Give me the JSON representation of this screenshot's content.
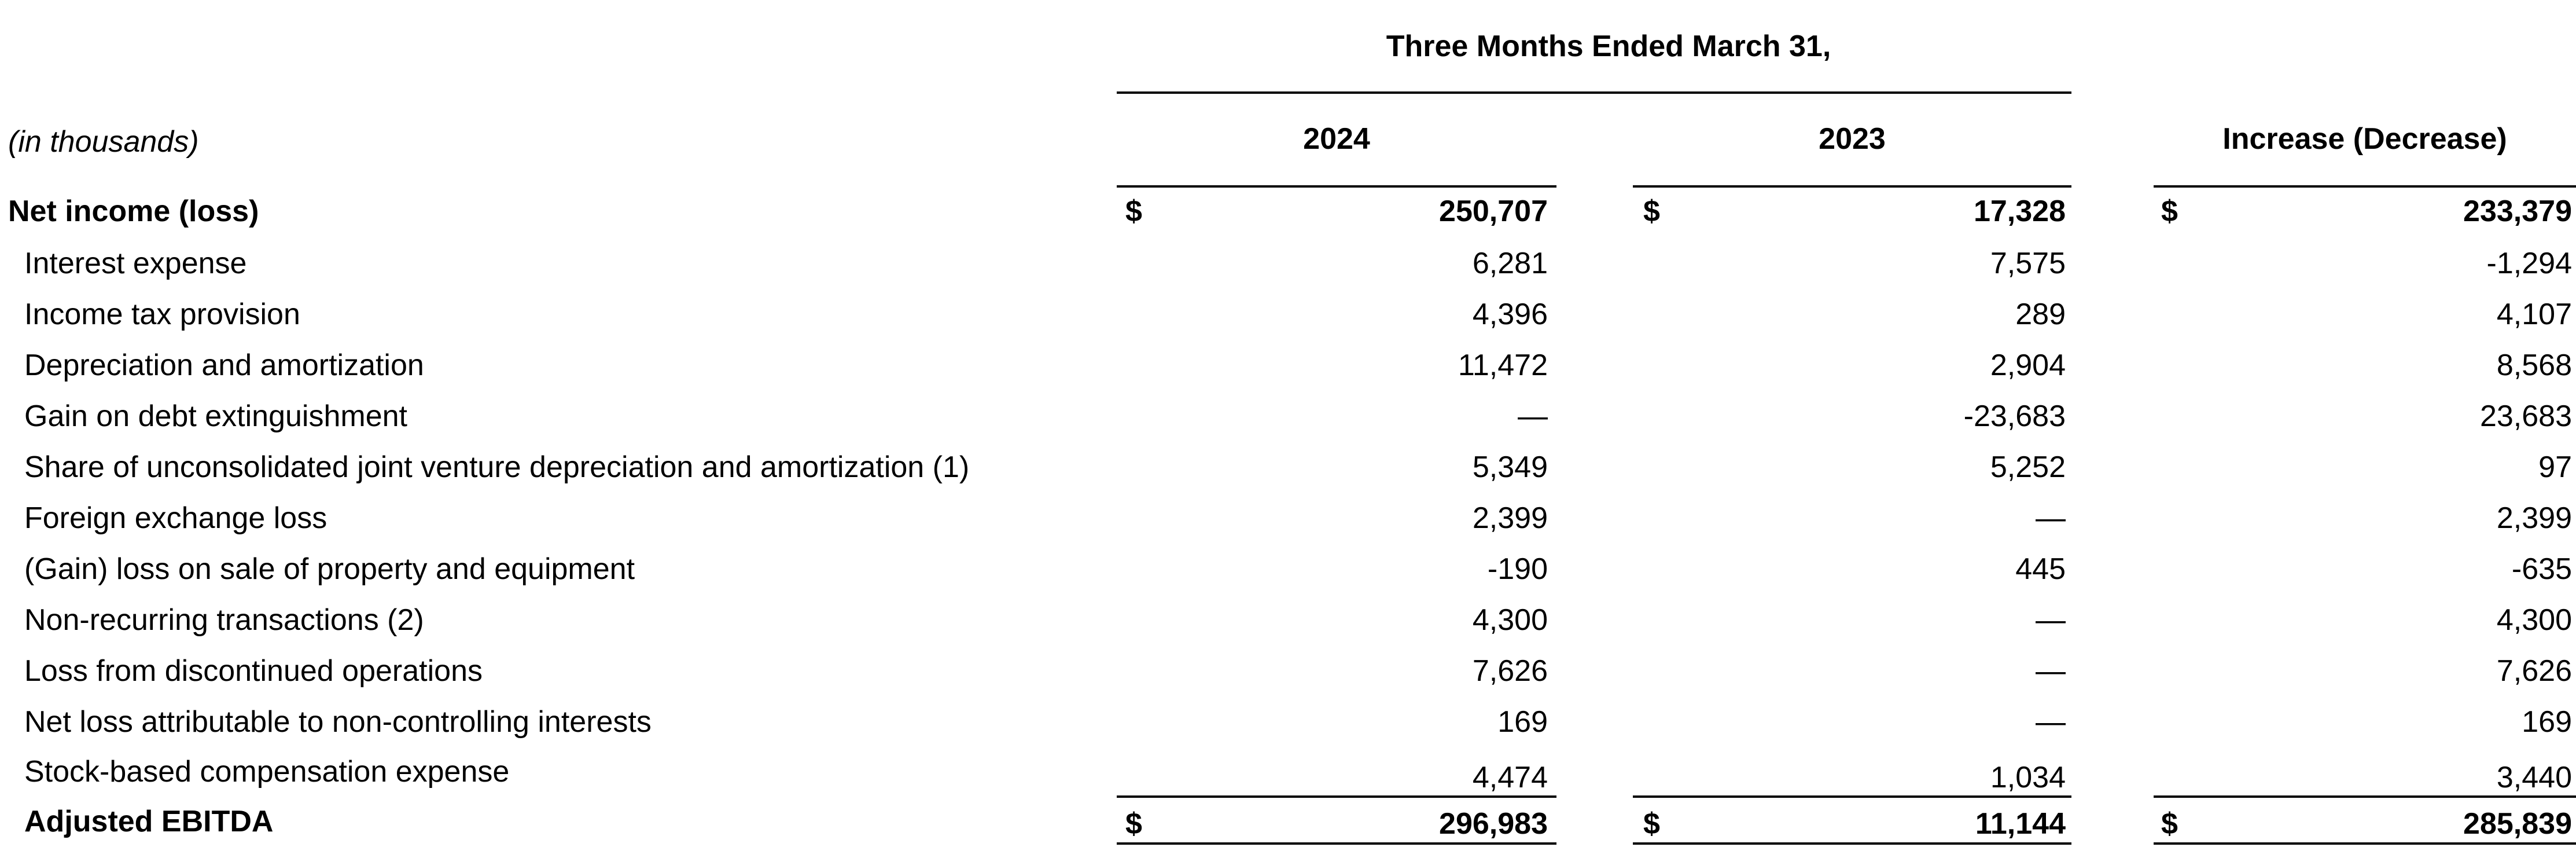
{
  "table": {
    "period_header": "Three Months Ended March 31,",
    "units_label": "(in thousands)",
    "columns": [
      "2024",
      "2023",
      "Increase (Decrease)"
    ],
    "currency_symbol": "$",
    "rows": [
      {
        "label": "Net income (loss)",
        "values": [
          "250,707",
          "17,328",
          "233,379"
        ]
      },
      {
        "label": "Interest expense",
        "values": [
          "6,281",
          "7,575",
          "-1,294"
        ]
      },
      {
        "label": "Income tax provision",
        "values": [
          "4,396",
          "289",
          "4,107"
        ]
      },
      {
        "label": "Depreciation and amortization",
        "values": [
          "11,472",
          "2,904",
          "8,568"
        ]
      },
      {
        "label": "Gain on debt extinguishment",
        "values": [
          "—",
          "-23,683",
          "23,683"
        ]
      },
      {
        "label": "Share of unconsolidated joint venture depreciation and amortization (1)",
        "values": [
          "5,349",
          "5,252",
          "97"
        ]
      },
      {
        "label": "Foreign exchange loss",
        "values": [
          "2,399",
          "—",
          "2,399"
        ]
      },
      {
        "label": "(Gain) loss on sale of property and equipment",
        "values": [
          "-190",
          "445",
          "-635"
        ]
      },
      {
        "label": "Non-recurring transactions (2)",
        "values": [
          "4,300",
          "—",
          "4,300"
        ]
      },
      {
        "label": "Loss from discontinued operations",
        "values": [
          "7,626",
          "—",
          "7,626"
        ]
      },
      {
        "label": "Net loss attributable to non-controlling interests",
        "values": [
          "169",
          "—",
          "169"
        ]
      },
      {
        "label": "Stock-based compensation expense",
        "values": [
          "4,474",
          "1,034",
          "3,440"
        ]
      }
    ],
    "total": {
      "label": "Adjusted EBITDA",
      "values": [
        "296,983",
        "11,144",
        "285,839"
      ]
    }
  }
}
